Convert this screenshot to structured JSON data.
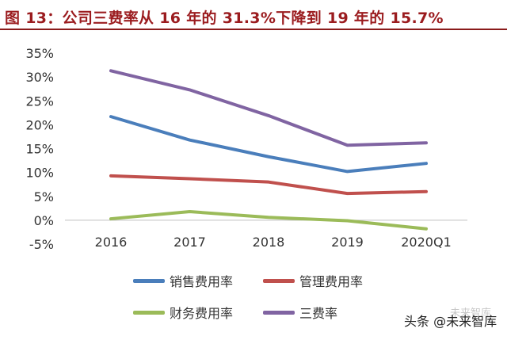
{
  "title": "图 13：公司三费率从 16 年的 31.3%下降到 19 年的 15.7%",
  "chart_data": {
    "type": "line",
    "categories": [
      "2016",
      "2017",
      "2018",
      "2019",
      "2020Q1"
    ],
    "ylim": [
      -5,
      35
    ],
    "ytick_labels": [
      "35%",
      "30%",
      "25%",
      "20%",
      "15%",
      "10%",
      "5%",
      "0%",
      "-5%"
    ],
    "ytick_values": [
      35,
      30,
      25,
      20,
      15,
      10,
      5,
      0,
      -5
    ],
    "grid": false,
    "legend_placement": "bottom",
    "series": [
      {
        "name": "销售费用率",
        "color": "#4a7ebb",
        "values": [
          21.7,
          16.8,
          13.3,
          10.2,
          11.9
        ]
      },
      {
        "name": "管理费用率",
        "color": "#c0504d",
        "values": [
          9.3,
          8.7,
          8.0,
          5.6,
          6.0
        ]
      },
      {
        "name": "财务费用率",
        "color": "#9bbb59",
        "values": [
          0.3,
          1.8,
          0.6,
          -0.1,
          -1.8
        ]
      },
      {
        "name": "三费率",
        "color": "#8064a2",
        "values": [
          31.3,
          27.3,
          21.9,
          15.7,
          16.2
        ]
      }
    ]
  },
  "watermark": {
    "label": "头条 @未来智库",
    "logo_text": "未来智库"
  }
}
